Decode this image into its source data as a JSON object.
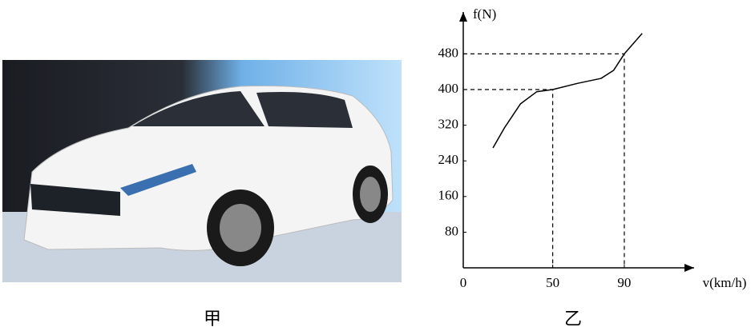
{
  "chart_data": {
    "type": "line",
    "x_label": "v(km/h)",
    "y_label": "f(N)",
    "x": [
      16.6,
      23,
      32,
      41,
      50,
      64,
      77,
      84,
      90,
      100
    ],
    "values": [
      269,
      314,
      368,
      395,
      400,
      414,
      425,
      443,
      480,
      526
    ],
    "color": "#000000",
    "xlim": [
      0,
      129
    ],
    "ylim": [
      0,
      574
    ],
    "xticks": [
      0,
      50,
      90
    ],
    "yticks": [
      80,
      160,
      240,
      320,
      400,
      480
    ],
    "guides": [
      4,
      8
    ]
  },
  "captions": [
    "甲",
    "乙"
  ]
}
